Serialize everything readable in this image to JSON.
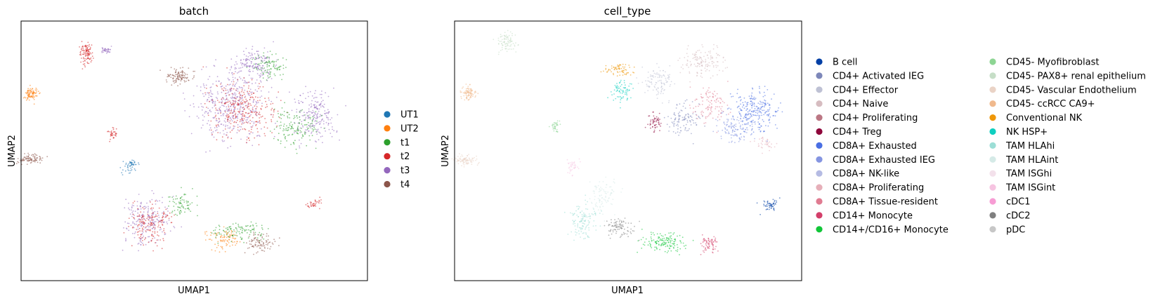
{
  "chart_data": [
    {
      "type": "scatter",
      "title": "batch",
      "xlabel": "UMAP1",
      "ylabel": "UMAP2",
      "xticks": false,
      "yticks": false,
      "grid": false,
      "legend_placement": "right",
      "series": [
        {
          "name": "UT1",
          "color": "#1f77b4"
        },
        {
          "name": "UT2",
          "color": "#ff7f0e"
        },
        {
          "name": "t1",
          "color": "#2ca02c"
        },
        {
          "name": "t2",
          "color": "#d62728"
        },
        {
          "name": "t3",
          "color": "#9467bd"
        },
        {
          "name": "t4",
          "color": "#8c564b"
        }
      ]
    },
    {
      "type": "scatter",
      "title": "cell_type",
      "xlabel": "UMAP1",
      "ylabel": "UMAP2",
      "xticks": false,
      "yticks": false,
      "grid": false,
      "legend_placement": "right, two columns",
      "series": [
        {
          "name": "B cell",
          "color": "#023fa5"
        },
        {
          "name": "CD4+ Activated IEG",
          "color": "#7d87b9"
        },
        {
          "name": "CD4+ Effector",
          "color": "#bec1d4"
        },
        {
          "name": "CD4+ Naive",
          "color": "#d6bcc0"
        },
        {
          "name": "CD4+ Proliferating",
          "color": "#bb7784"
        },
        {
          "name": "CD4+ Treg",
          "color": "#8e063b"
        },
        {
          "name": "CD8A+ Exhausted",
          "color": "#4a6fe3"
        },
        {
          "name": "CD8A+ Exhausted IEG",
          "color": "#8595e1"
        },
        {
          "name": "CD8A+ NK-like",
          "color": "#b5bbe3"
        },
        {
          "name": "CD8A+ Proliferating",
          "color": "#e6afb9"
        },
        {
          "name": "CD8A+ Tissue-resident",
          "color": "#e07b91"
        },
        {
          "name": "CD14+ Monocyte",
          "color": "#d33f6a"
        },
        {
          "name": "CD14+/CD16+ Monocyte",
          "color": "#11c638"
        },
        {
          "name": "CD45- Myofibroblast",
          "color": "#8dd593"
        },
        {
          "name": "CD45- PAX8+ renal epithelium",
          "color": "#c6dec7"
        },
        {
          "name": "CD45- Vascular Endothelium",
          "color": "#ead3c6"
        },
        {
          "name": "CD45- ccRCC CA9+",
          "color": "#f0b98d"
        },
        {
          "name": "Conventional NK",
          "color": "#ef9708"
        },
        {
          "name": "NK HSP+",
          "color": "#0fcfc0"
        },
        {
          "name": "TAM HLAhi",
          "color": "#9cded6"
        },
        {
          "name": "TAM HLAint",
          "color": "#d5eae7"
        },
        {
          "name": "TAM ISGhi",
          "color": "#f3e1eb"
        },
        {
          "name": "TAM ISGint",
          "color": "#f6c4e1"
        },
        {
          "name": "cDC1",
          "color": "#f79cd4"
        },
        {
          "name": "cDC2",
          "color": "#7f7f7f"
        },
        {
          "name": "pDC",
          "color": "#c7c7c7"
        }
      ]
    }
  ]
}
